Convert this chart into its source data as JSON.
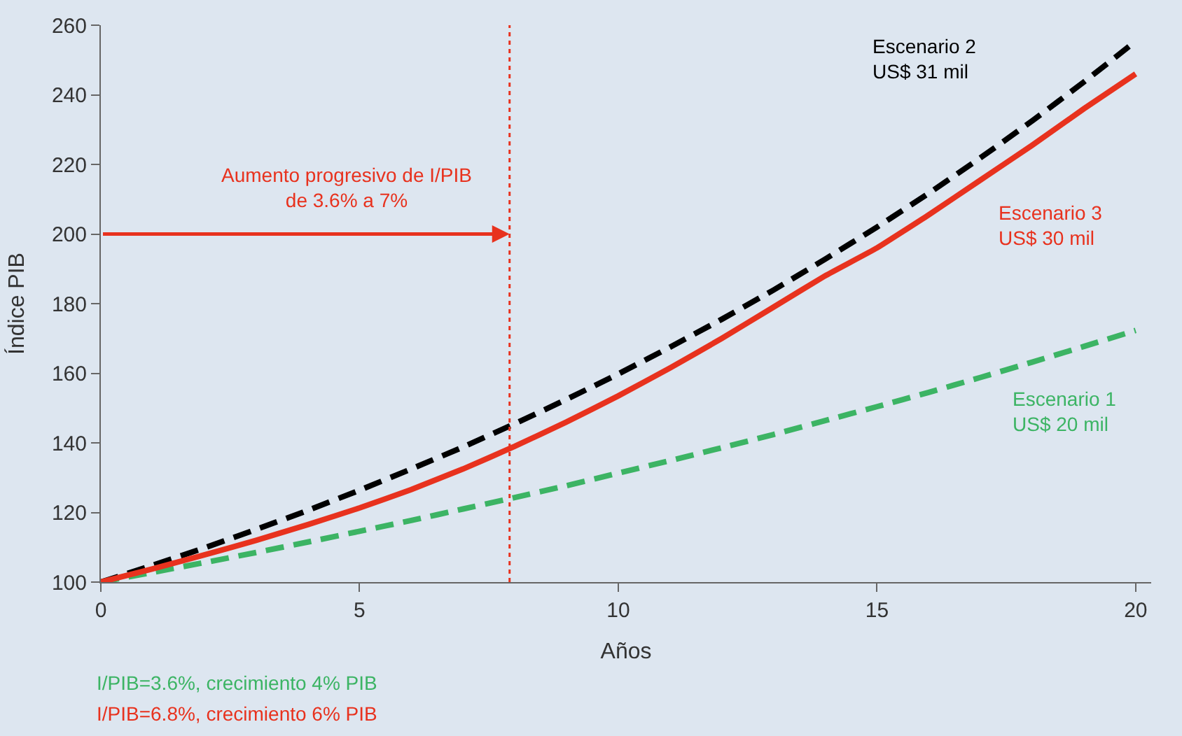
{
  "chart_data": {
    "type": "line",
    "xlabel": "Años",
    "ylabel": "Índice PIB",
    "x": [
      0,
      1,
      2,
      3,
      4,
      5,
      6,
      7,
      8,
      9,
      10,
      11,
      12,
      13,
      14,
      15,
      16,
      17,
      18,
      19,
      20
    ],
    "series": [
      {
        "name": "Escenario 1\nUS$ 20 mil",
        "color": "#3cb464",
        "line_style": "dashed",
        "values": [
          100,
          102.8,
          105.6,
          108.5,
          111.5,
          114.6,
          117.7,
          121.0,
          124.3,
          127.7,
          131.3,
          134.9,
          138.6,
          142.4,
          146.4,
          150.4,
          154.5,
          158.8,
          163.2,
          167.7,
          172.3
        ]
      },
      {
        "name": "Escenario 2\nUS$ 31 mil",
        "color": "#000000",
        "line_style": "dashed",
        "values": [
          100,
          104.8,
          109.8,
          115.1,
          120.6,
          126.4,
          132.5,
          138.8,
          145.5,
          152.5,
          159.8,
          167.5,
          175.5,
          183.9,
          192.8,
          202.0,
          211.7,
          221.9,
          232.5,
          243.7,
          255.4
        ]
      },
      {
        "name": "Escenario 3\nUS$ 30 mil",
        "color": "#e8321e",
        "line_style": "solid",
        "values": [
          100,
          103.8,
          107.8,
          112,
          116.5,
          121.3,
          126.6,
          132.5,
          139,
          146,
          153.5,
          161.5,
          170,
          179,
          188,
          196,
          205.5,
          215.5,
          225.5,
          236,
          246
        ]
      }
    ],
    "xlim": [
      0,
      20.3
    ],
    "xticks": [
      0,
      5,
      10,
      15,
      20
    ],
    "ylim": [
      100,
      260
    ],
    "yticks": [
      100,
      120,
      140,
      160,
      180,
      200,
      220,
      240,
      260
    ],
    "ref_lines": [
      {
        "axis": "x",
        "value": 7.9,
        "color": "#e8321e",
        "line_style": "dotted"
      }
    ],
    "annotations": [
      {
        "text": "Aumento progresivo de I/PIB\nde 3.6% a 7%",
        "x": 7.9,
        "y": 200
      },
      "I/PIB=3.6%, crecimiento 4% PIB",
      "I/PIB=6.8%, crecimiento 6% PIB"
    ],
    "grid": false,
    "legend": false,
    "marker": "none"
  }
}
